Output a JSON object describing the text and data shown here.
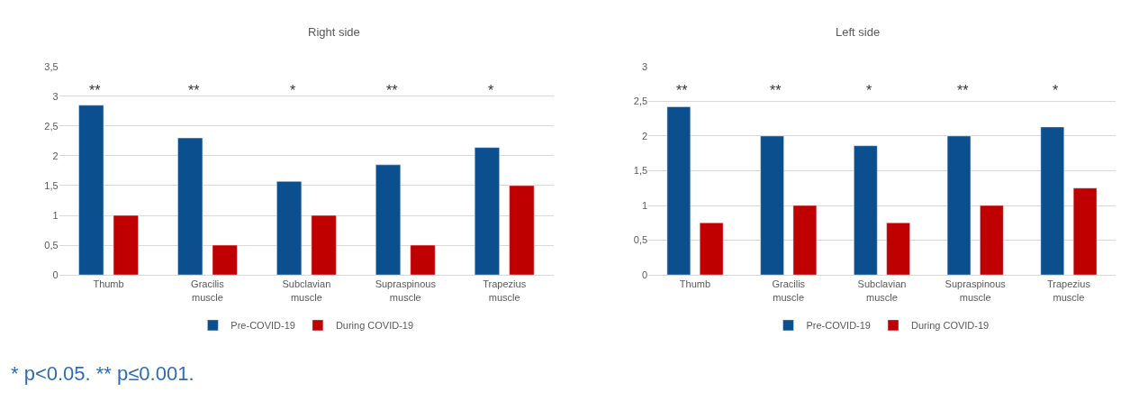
{
  "chart_data": [
    {
      "type": "bar",
      "title": "Right side",
      "categories": [
        "Thumb",
        "Gracilis\nmuscle",
        "Subclavian\nmuscle",
        "Supraspinous\nmuscle",
        "Trapezius\nmuscle"
      ],
      "series": [
        {
          "name": "Pre-COVID-19",
          "color": "#0b4f8f",
          "values": [
            2.85,
            2.3,
            1.57,
            1.85,
            2.14
          ]
        },
        {
          "name": "During COVID-19",
          "color": "#c00000",
          "values": [
            1,
            0.5,
            1,
            0.5,
            1.5
          ]
        }
      ],
      "ylim": [
        0,
        3.5
      ],
      "yticks": [
        0,
        {
          "value": 0.5,
          "label": "0,5"
        },
        1,
        {
          "value": 1.5,
          "label": "1,5"
        },
        2,
        {
          "value": 2.5,
          "label": "2,5"
        },
        3,
        {
          "value": 3.5,
          "label": "3,5"
        }
      ],
      "grid": "y",
      "legend": "bottom",
      "annotations": [
        "**",
        "**",
        "*",
        "**",
        "*",
        "* p<0.05. ** p≤0.001."
      ]
    },
    {
      "type": "bar",
      "title": "Left side",
      "categories": [
        "Thumb",
        "Gracilis\nmuscle",
        "Subclavian\nmuscle",
        "Supraspinous\nmuscle",
        "Trapezius\nmuscle"
      ],
      "series": [
        {
          "name": "Pre-COVID-19",
          "color": "#0b4f8f",
          "values": [
            2.42,
            2.0,
            1.86,
            2.0,
            2.13
          ]
        },
        {
          "name": "During COVID-19",
          "color": "#c00000",
          "values": [
            0.75,
            1.0,
            0.75,
            1.0,
            1.25
          ]
        }
      ],
      "ylim": [
        0,
        3
      ],
      "yticks": [
        0,
        {
          "value": 0.5,
          "label": "0,5"
        },
        1,
        {
          "value": 1.5,
          "label": "1,5"
        },
        2,
        {
          "value": 2.5,
          "label": "2,5"
        },
        3
      ],
      "grid": "y",
      "legend": "bottom",
      "annotations": [
        "**",
        "**",
        "*",
        "**",
        "*"
      ]
    }
  ]
}
